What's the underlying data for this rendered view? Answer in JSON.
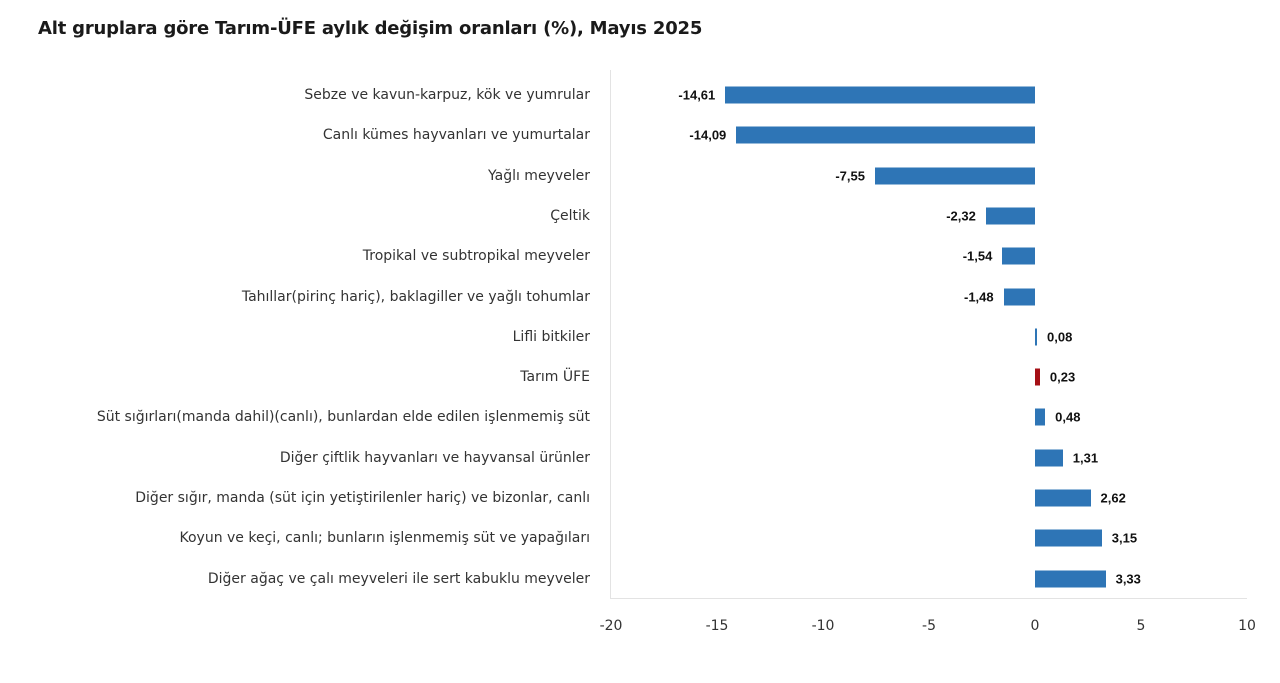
{
  "chart_data": {
    "type": "bar",
    "orientation": "horizontal",
    "title": "Alt gruplara göre Tarım-ÜFE aylık değişim oranları (%), Mayıs 2025",
    "xlabel": "",
    "ylabel": "",
    "xlim": [
      -20,
      10
    ],
    "xticks": [
      "-20",
      "-15",
      "-10",
      "-5",
      "0",
      "5",
      "10"
    ],
    "grid": false,
    "legend": null,
    "categories": [
      "Sebze ve kavun-karpuz, kök ve yumrular",
      "Canlı kümes hayvanları ve yumurtalar",
      "Yağlı meyveler",
      "Çeltik",
      "Tropikal ve subtropikal meyveler",
      "Tahıllar(pirinç hariç), baklagiller ve yağlı tohumlar",
      "Lifli bitkiler",
      "Tarım ÜFE",
      "Süt sığırları(manda dahil)(canlı), bunlardan elde edilen işlenmemiş süt",
      "Diğer çiftlik hayvanları ve hayvansal ürünler",
      "Diğer sığır, manda (süt için yetiştirilenler hariç) ve bizonlar, canlı",
      "Koyun ve keçi, canlı; bunların işlenmemiş süt ve yapağıları",
      "Diğer ağaç ve çalı meyveleri ile sert kabuklu meyveler"
    ],
    "values": [
      -14.61,
      -14.09,
      -7.55,
      -2.32,
      -1.54,
      -1.48,
      0.08,
      0.23,
      0.48,
      1.31,
      2.62,
      3.15,
      3.33
    ],
    "value_labels": [
      "-14,61",
      "-14,09",
      "-7,55",
      "-2,32",
      "-1,54",
      "-1,48",
      "0,08",
      "0,23",
      "0,48",
      "1,31",
      "2,62",
      "3,15",
      "3,33"
    ],
    "colors": {
      "default": "#2e75b6",
      "highlight": "#a50f15",
      "highlight_category": "Tarım ÜFE"
    }
  }
}
